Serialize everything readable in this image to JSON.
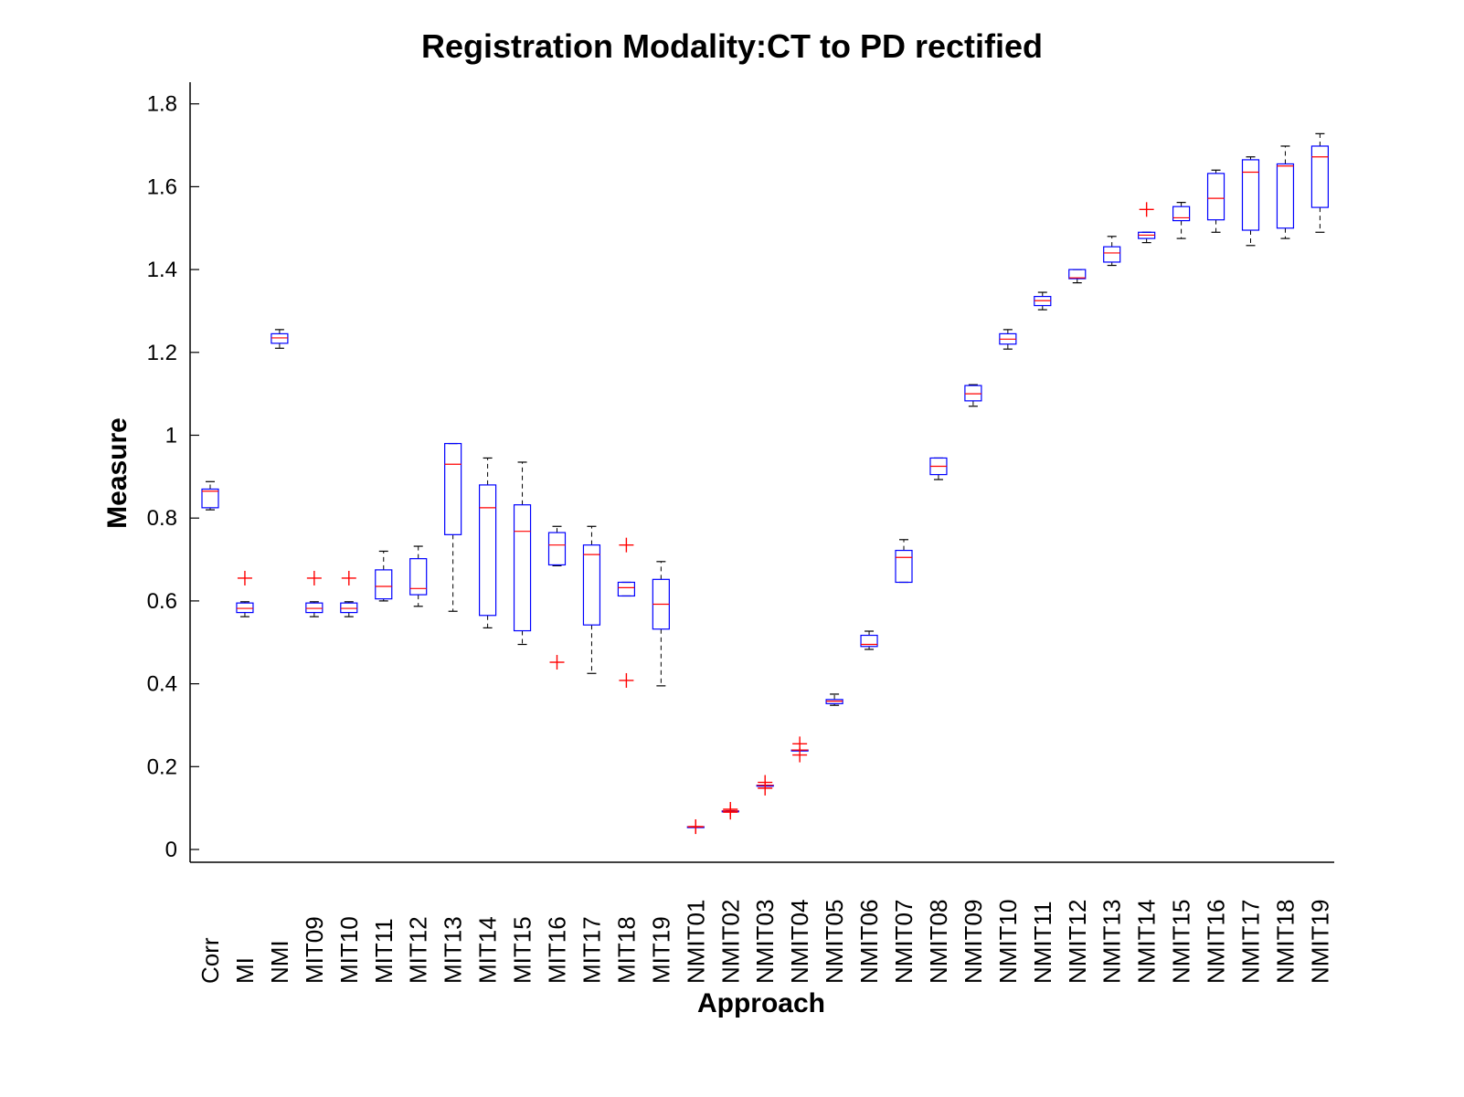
{
  "chart_data": {
    "type": "box",
    "title": "Registration Modality:CT to PD rectified",
    "xlabel": "Approach",
    "ylabel": "Measure",
    "ylim": [
      -0.03,
      1.85
    ],
    "yticks": [
      0,
      0.2,
      0.4,
      0.6,
      0.8,
      1,
      1.2,
      1.4,
      1.6,
      1.8
    ],
    "ytick_labels": [
      "0",
      "0.2",
      "0.4",
      "0.6",
      "0.8",
      "1",
      "1.2",
      "1.4",
      "1.6",
      "1.8"
    ],
    "colors": {
      "box": "#0000ff",
      "median": "#ff0000",
      "whisker": "#000000",
      "outlier": "#ff0000",
      "axis": "#000000"
    },
    "categories": [
      "Corr",
      "MI",
      "NMI",
      "MIT09",
      "MIT10",
      "MIT11",
      "MIT12",
      "MIT13",
      "MIT14",
      "MIT15",
      "MIT16",
      "MIT17",
      "MIT18",
      "MIT19",
      "NMIT01",
      "NMIT02",
      "NMIT03",
      "NMIT04",
      "NMIT05",
      "NMIT06",
      "NMIT07",
      "NMIT08",
      "NMIT09",
      "NMIT10",
      "NMIT11",
      "NMIT12",
      "NMIT13",
      "NMIT14",
      "NMIT15",
      "NMIT16",
      "NMIT17",
      "NMIT18",
      "NMIT19"
    ],
    "boxes": [
      {
        "lo": 0.82,
        "q1": 0.825,
        "med": 0.865,
        "q3": 0.87,
        "hi": 0.888,
        "outliers": []
      },
      {
        "lo": 0.562,
        "q1": 0.572,
        "med": 0.582,
        "q3": 0.595,
        "hi": 0.598,
        "outliers": [
          0.655
        ]
      },
      {
        "lo": 1.21,
        "q1": 1.222,
        "med": 1.235,
        "q3": 1.245,
        "hi": 1.255,
        "outliers": []
      },
      {
        "lo": 0.562,
        "q1": 0.572,
        "med": 0.582,
        "q3": 0.595,
        "hi": 0.598,
        "outliers": [
          0.655
        ]
      },
      {
        "lo": 0.562,
        "q1": 0.572,
        "med": 0.582,
        "q3": 0.595,
        "hi": 0.598,
        "outliers": [
          0.655
        ]
      },
      {
        "lo": 0.6,
        "q1": 0.605,
        "med": 0.635,
        "q3": 0.675,
        "hi": 0.72,
        "outliers": []
      },
      {
        "lo": 0.587,
        "q1": 0.615,
        "med": 0.63,
        "q3": 0.702,
        "hi": 0.732,
        "outliers": []
      },
      {
        "lo": 0.575,
        "q1": 0.76,
        "med": 0.93,
        "q3": 0.98,
        "hi": 0.98,
        "outliers": []
      },
      {
        "lo": 0.535,
        "q1": 0.565,
        "med": 0.825,
        "q3": 0.88,
        "hi": 0.945,
        "outliers": []
      },
      {
        "lo": 0.495,
        "q1": 0.528,
        "med": 0.768,
        "q3": 0.832,
        "hi": 0.935,
        "outliers": []
      },
      {
        "lo": 0.685,
        "q1": 0.687,
        "med": 0.735,
        "q3": 0.765,
        "hi": 0.78,
        "outliers": [
          0.452
        ]
      },
      {
        "lo": 0.425,
        "q1": 0.542,
        "med": 0.712,
        "q3": 0.735,
        "hi": 0.78,
        "outliers": []
      },
      {
        "lo": 0.612,
        "q1": 0.612,
        "med": 0.632,
        "q3": 0.645,
        "hi": 0.645,
        "outliers": [
          0.735,
          0.408
        ]
      },
      {
        "lo": 0.395,
        "q1": 0.532,
        "med": 0.592,
        "q3": 0.652,
        "hi": 0.695,
        "outliers": []
      },
      {
        "lo": 0.055,
        "q1": 0.055,
        "med": 0.055,
        "q3": 0.055,
        "hi": 0.055,
        "outliers": [
          0.055,
          0.055
        ]
      },
      {
        "lo": 0.093,
        "q1": 0.093,
        "med": 0.093,
        "q3": 0.093,
        "hi": 0.093,
        "outliers": [
          0.097,
          0.09
        ]
      },
      {
        "lo": 0.155,
        "q1": 0.155,
        "med": 0.155,
        "q3": 0.155,
        "hi": 0.155,
        "outliers": [
          0.162,
          0.148
        ]
      },
      {
        "lo": 0.24,
        "q1": 0.24,
        "med": 0.24,
        "q3": 0.24,
        "hi": 0.24,
        "outliers": [
          0.255,
          0.228
        ]
      },
      {
        "lo": 0.348,
        "q1": 0.352,
        "med": 0.358,
        "q3": 0.362,
        "hi": 0.375,
        "outliers": []
      },
      {
        "lo": 0.483,
        "q1": 0.49,
        "med": 0.495,
        "q3": 0.517,
        "hi": 0.527,
        "outliers": []
      },
      {
        "lo": 0.645,
        "q1": 0.645,
        "med": 0.705,
        "q3": 0.722,
        "hi": 0.748,
        "outliers": []
      },
      {
        "lo": 0.893,
        "q1": 0.905,
        "med": 0.925,
        "q3": 0.945,
        "hi": 0.945,
        "outliers": []
      },
      {
        "lo": 1.07,
        "q1": 1.083,
        "med": 1.1,
        "q3": 1.12,
        "hi": 1.122,
        "outliers": []
      },
      {
        "lo": 1.208,
        "q1": 1.22,
        "med": 1.232,
        "q3": 1.245,
        "hi": 1.255,
        "outliers": []
      },
      {
        "lo": 1.303,
        "q1": 1.313,
        "med": 1.325,
        "q3": 1.335,
        "hi": 1.345,
        "outliers": []
      },
      {
        "lo": 1.368,
        "q1": 1.378,
        "med": 1.38,
        "q3": 1.4,
        "hi": 1.4,
        "outliers": []
      },
      {
        "lo": 1.41,
        "q1": 1.418,
        "med": 1.44,
        "q3": 1.455,
        "hi": 1.48,
        "outliers": []
      },
      {
        "lo": 1.465,
        "q1": 1.475,
        "med": 1.483,
        "q3": 1.49,
        "hi": 1.49,
        "outliers": [
          1.545
        ]
      },
      {
        "lo": 1.475,
        "q1": 1.518,
        "med": 1.525,
        "q3": 1.552,
        "hi": 1.562,
        "outliers": []
      },
      {
        "lo": 1.49,
        "q1": 1.52,
        "med": 1.572,
        "q3": 1.632,
        "hi": 1.64,
        "outliers": []
      },
      {
        "lo": 1.458,
        "q1": 1.495,
        "med": 1.635,
        "q3": 1.665,
        "hi": 1.672,
        "outliers": []
      },
      {
        "lo": 1.475,
        "q1": 1.5,
        "med": 1.65,
        "q3": 1.655,
        "hi": 1.698,
        "outliers": []
      },
      {
        "lo": 1.49,
        "q1": 1.55,
        "med": 1.672,
        "q3": 1.698,
        "hi": 1.728,
        "outliers": []
      }
    ]
  }
}
